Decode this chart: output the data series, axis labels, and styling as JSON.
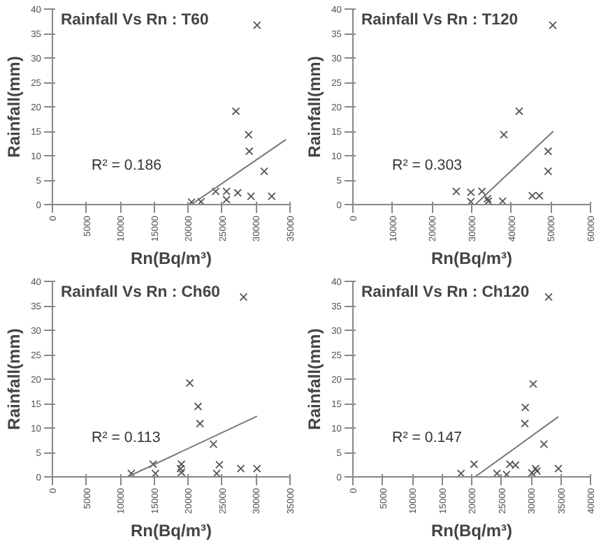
{
  "chart_data": [
    {
      "type": "scatter",
      "title": "Rainfall Vs Rn : T60",
      "xlabel": "Rn(Bq/m³)",
      "ylabel": "Rainfall(mm)",
      "xlim": [
        0,
        35000
      ],
      "xticks": [
        0,
        5000,
        10000,
        15000,
        20000,
        25000,
        30000,
        35000
      ],
      "ylim": [
        0,
        40
      ],
      "yticks": [
        0,
        5,
        10,
        15,
        20,
        25,
        30,
        35,
        40
      ],
      "grid": false,
      "annotations": [
        "R² = 0.186"
      ],
      "series": [
        {
          "marker": "cross",
          "color": "#555555",
          "x": [
            30150,
            27030,
            28900,
            29000,
            31200,
            24050,
            25650,
            27300,
            25650,
            29250,
            32300,
            20500,
            21900
          ],
          "values": [
            36.7,
            19.1,
            14.3,
            10.9,
            6.8,
            2.7,
            2.7,
            2.4,
            1.0,
            1.7,
            1.7,
            0.5,
            0.6
          ]
        },
        {
          "type": "line",
          "color": "#777777",
          "x": [
            20450,
            34400
          ],
          "values": [
            0,
            13.3
          ]
        }
      ]
    },
    {
      "type": "scatter",
      "title": "Rainfall Vs Rn : T120",
      "xlabel": "Rn(Bq/m³)",
      "ylabel": "Rainfall(mm)",
      "xlim": [
        0,
        60000
      ],
      "xticks": [
        0,
        10000,
        20000,
        30000,
        40000,
        50000,
        60000
      ],
      "ylim": [
        0,
        40
      ],
      "yticks": [
        0,
        5,
        10,
        15,
        20,
        25,
        30,
        35,
        40
      ],
      "grid": false,
      "annotations": [
        "R² = 0.303"
      ],
      "series": [
        {
          "marker": "cross",
          "color": "#555555",
          "x": [
            50470,
            42000,
            38120,
            49300,
            49300,
            26100,
            29800,
            32600,
            29800,
            34200,
            34000,
            37800,
            45300,
            47100
          ],
          "values": [
            36.7,
            19.1,
            14.3,
            10.9,
            6.8,
            2.7,
            2.5,
            2.7,
            0.6,
            0.7,
            1.2,
            0.7,
            1.8,
            1.8
          ]
        },
        {
          "type": "line",
          "color": "#777777",
          "x": [
            30900,
            50600
          ],
          "values": [
            0,
            15.0
          ]
        }
      ]
    },
    {
      "type": "scatter",
      "title": "Rainfall Vs Rn : Ch60",
      "xlabel": "Rn(Bq/m³)",
      "ylabel": "Rainfall(mm)",
      "xlim": [
        0,
        35000
      ],
      "xticks": [
        0,
        5000,
        10000,
        15000,
        20000,
        25000,
        30000,
        35000
      ],
      "ylim": [
        0,
        40
      ],
      "yticks": [
        0,
        5,
        10,
        15,
        20,
        25,
        30,
        35,
        40
      ],
      "grid": false,
      "annotations": [
        "R² = 0.113"
      ],
      "series": [
        {
          "marker": "cross",
          "color": "#555555",
          "x": [
            28160,
            20230,
            21460,
            21740,
            23720,
            14830,
            15170,
            19000,
            19000,
            18870,
            24600,
            24200,
            27750,
            30140,
            11620
          ],
          "values": [
            36.8,
            19.2,
            14.4,
            10.9,
            6.7,
            2.6,
            0.7,
            2.6,
            0.9,
            1.7,
            2.5,
            0.7,
            1.7,
            1.7,
            0.7
          ]
        },
        {
          "type": "line",
          "color": "#777777",
          "x": [
            11070,
            30140
          ],
          "values": [
            0,
            12.4
          ]
        }
      ]
    },
    {
      "type": "scatter",
      "title": "Rainfall Vs Rn : Ch120",
      "xlabel": "Rn(Bq/m³)",
      "ylabel": "Rainfall(mm)",
      "xlim": [
        0,
        40000
      ],
      "xticks": [
        0,
        5000,
        10000,
        15000,
        20000,
        25000,
        30000,
        35000,
        40000
      ],
      "ylim": [
        0,
        40
      ],
      "yticks": [
        0,
        5,
        10,
        15,
        20,
        25,
        30,
        35,
        40
      ],
      "grid": false,
      "annotations": [
        "R² = 0.147"
      ],
      "series": [
        {
          "marker": "cross",
          "color": "#555555",
          "x": [
            32940,
            30350,
            29020,
            28940,
            32160,
            20390,
            26430,
            27370,
            18200,
            24240,
            25880,
            30120,
            30750,
            30980,
            34590
          ],
          "values": [
            36.8,
            19.0,
            14.2,
            10.9,
            6.7,
            2.6,
            2.6,
            2.4,
            0.7,
            0.7,
            0.5,
            0.8,
            1.7,
            1.2,
            1.7
          ]
        },
        {
          "type": "line",
          "color": "#777777",
          "x": [
            20550,
            34590
          ],
          "values": [
            0,
            12.3
          ]
        }
      ]
    }
  ]
}
